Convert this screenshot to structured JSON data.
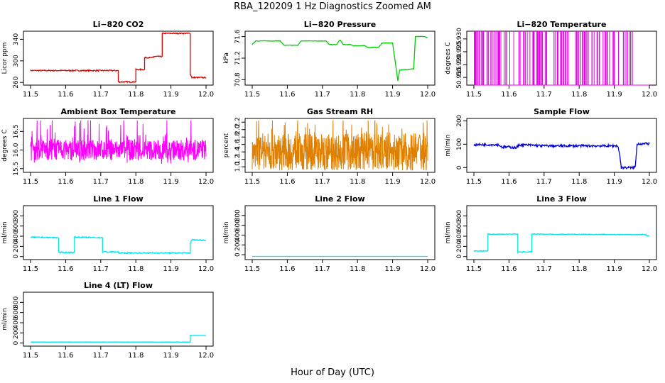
{
  "figure": {
    "title": "RBA_120209  1 Hz Diagnostics Zoomed AM",
    "xlabel": "Hour of Day (UTC)"
  },
  "chart_data": [
    {
      "id": "co2",
      "type": "line",
      "title": "Li−820 CO2",
      "ylabel": "Licor ppm",
      "color": "#e00000",
      "xlim": [
        11.5,
        12.0
      ],
      "ylim": [
        255,
        355
      ],
      "x_ticks": [
        11.5,
        11.6,
        11.7,
        11.8,
        11.9,
        12.0
      ],
      "x_tick_labels": [
        "11.5",
        "11.6",
        "11.7",
        "11.8",
        "11.9",
        "12.0"
      ],
      "y_ticks": [
        260,
        300,
        340
      ],
      "y_tick_labels": [
        "260",
        "300",
        "340"
      ],
      "noise": 1,
      "x": [
        11.5,
        11.75,
        11.75,
        11.8,
        11.8,
        11.825,
        11.825,
        11.85,
        11.85,
        11.875,
        11.875,
        11.955,
        11.955,
        11.96,
        11.96,
        12.0
      ],
      "y": [
        282,
        282,
        261,
        261,
        284,
        284,
        306,
        306,
        308,
        308,
        351,
        351,
        275,
        269,
        269,
        269
      ]
    },
    {
      "id": "pressure",
      "type": "line",
      "title": "Li−820 Pressure",
      "ylabel": "kPa",
      "color": "#00cc00",
      "xlim": [
        11.5,
        12.0
      ],
      "ylim": [
        70.7,
        71.7
      ],
      "x_ticks": [
        11.5,
        11.6,
        11.7,
        11.8,
        11.9,
        12.0
      ],
      "x_tick_labels": [
        "11.5",
        "11.6",
        "11.7",
        "11.8",
        "11.9",
        "12.0"
      ],
      "y_ticks": [
        70.8,
        71.2,
        71.6
      ],
      "y_tick_labels": [
        "70.8",
        "71.2",
        "71.6"
      ],
      "noise": 0.005,
      "x": [
        11.5,
        11.51,
        11.58,
        11.59,
        11.63,
        11.64,
        11.71,
        11.72,
        11.74,
        11.75,
        11.76,
        11.78,
        11.79,
        11.82,
        11.83,
        11.86,
        11.87,
        11.9,
        11.915,
        11.915,
        11.92,
        11.955,
        11.96,
        11.965,
        11.99,
        12.0
      ],
      "y": [
        71.45,
        71.52,
        71.52,
        71.44,
        71.44,
        71.52,
        71.52,
        71.45,
        71.45,
        71.54,
        71.45,
        71.45,
        71.43,
        71.43,
        71.4,
        71.4,
        71.48,
        71.48,
        70.78,
        70.78,
        70.98,
        71.0,
        71.0,
        71.6,
        71.6,
        71.58
      ]
    },
    {
      "id": "licor_temp",
      "type": "spikes",
      "title": "Li−820 Temperature",
      "ylabel": "degrees C",
      "color": "#ee00ee",
      "xlim": [
        11.5,
        12.0
      ],
      "ylim": [
        50.912,
        50.933
      ],
      "x_ticks": [
        11.5,
        11.6,
        11.7,
        11.8,
        11.9,
        12.0
      ],
      "x_tick_labels": [
        "11.5",
        "11.6",
        "11.7",
        "11.8",
        "11.9",
        "12.0"
      ],
      "y_ticks": [
        50.915,
        50.92,
        50.925,
        50.93
      ],
      "y_tick_labels": [
        "50.915",
        "50.920",
        "50.925",
        "50.930"
      ],
      "base": 50.912,
      "top": 50.933,
      "count": 120
    },
    {
      "id": "box_temp",
      "type": "noise",
      "title": "Ambient Box Temperature",
      "ylabel": "degrees C",
      "color": "#ff00ff",
      "xlim": [
        11.5,
        12.0
      ],
      "ylim": [
        15.4,
        16.85
      ],
      "x_ticks": [
        11.5,
        11.6,
        11.7,
        11.8,
        11.9,
        12.0
      ],
      "x_tick_labels": [
        "11.5",
        "11.6",
        "11.7",
        "11.8",
        "11.9",
        "12.0"
      ],
      "y_ticks": [
        15.5,
        16.0,
        16.5
      ],
      "y_tick_labels": [
        "15.5",
        "16.0",
        "16.5"
      ],
      "center": 16.0,
      "spread": 0.28,
      "min": 15.5,
      "max": 16.8,
      "count": 700
    },
    {
      "id": "rh",
      "type": "noise",
      "title": "Gas Stream RH",
      "ylabel": "percent",
      "color": "#e08000",
      "xlim": [
        11.5,
        12.0
      ],
      "ylim": [
        0.85,
        2.3
      ],
      "x_ticks": [
        11.5,
        11.6,
        11.7,
        11.8,
        11.9,
        12.0
      ],
      "x_tick_labels": [
        "11.5",
        "11.6",
        "11.7",
        "11.8",
        "11.9",
        "12.0"
      ],
      "y_ticks": [
        1.0,
        1.2,
        1.4,
        1.6,
        1.8,
        2.0,
        2.2
      ],
      "y_tick_labels": [
        "1.0",
        "1.2",
        "1.4",
        "1.6",
        "1.8",
        "2.0",
        "2.2"
      ],
      "center": 1.4,
      "spread": 0.5,
      "min": 0.9,
      "max": 2.25,
      "count": 800
    },
    {
      "id": "sample_flow",
      "type": "line",
      "title": "Sample Flow",
      "ylabel": "ml/min",
      "color": "#0000dd",
      "xlim": [
        11.5,
        12.0
      ],
      "ylim": [
        -20,
        210
      ],
      "x_ticks": [
        11.5,
        11.6,
        11.7,
        11.8,
        11.9,
        12.0
      ],
      "x_tick_labels": [
        "11.5",
        "11.6",
        "11.7",
        "11.8",
        "11.9",
        "12.0"
      ],
      "y_ticks": [
        0,
        100,
        200
      ],
      "y_tick_labels": [
        "0",
        "100",
        "200"
      ],
      "noise": 5,
      "x": [
        11.5,
        11.57,
        11.58,
        11.6,
        11.62,
        11.63,
        11.65,
        11.7,
        11.91,
        11.915,
        11.92,
        11.955,
        11.96,
        11.965,
        12.0
      ],
      "y": [
        98,
        98,
        88,
        88,
        85,
        97,
        97,
        93,
        93,
        60,
        0,
        0,
        5,
        102,
        102
      ]
    },
    {
      "id": "line1",
      "type": "line",
      "title": "Line 1 Flow",
      "ylabel": "ml/min",
      "color": "#00e5ee",
      "xlim": [
        11.5,
        12.0
      ],
      "ylim": [
        -60,
        1000
      ],
      "x_ticks": [
        11.5,
        11.6,
        11.7,
        11.8,
        11.9,
        12.0
      ],
      "x_tick_labels": [
        "11.5",
        "11.6",
        "11.7",
        "11.8",
        "11.9",
        "12.0"
      ],
      "y_ticks": [
        0,
        200,
        400,
        600,
        800
      ],
      "y_tick_labels": [
        "0",
        "200",
        "400",
        "600",
        "800"
      ],
      "noise": 12,
      "x": [
        11.5,
        11.58,
        11.58,
        11.625,
        11.625,
        11.705,
        11.705,
        11.75,
        11.75,
        11.955,
        11.955,
        11.96,
        12.0
      ],
      "y": [
        380,
        370,
        80,
        80,
        380,
        370,
        90,
        90,
        70,
        70,
        260,
        330,
        320
      ]
    },
    {
      "id": "line2",
      "type": "line",
      "title": "Line 2 Flow",
      "ylabel": "ml/min",
      "color": "#00e5ee",
      "xlim": [
        11.5,
        12.0
      ],
      "ylim": [
        -100,
        1000
      ],
      "x_ticks": [
        11.5,
        11.6,
        11.7,
        11.8,
        11.9,
        12.0
      ],
      "x_tick_labels": [
        "11.5",
        "11.6",
        "11.7",
        "11.8",
        "11.9",
        "12.0"
      ],
      "y_ticks": [
        0,
        200,
        400,
        600,
        800
      ],
      "y_tick_labels": [
        "0",
        "200",
        "400",
        "600",
        "800"
      ],
      "noise": 0,
      "x": [
        11.5,
        12.0
      ],
      "y": [
        -35,
        -35
      ]
    },
    {
      "id": "line3",
      "type": "line",
      "title": "Line 3 Flow",
      "ylabel": "ml/min",
      "color": "#00e5ee",
      "xlim": [
        11.5,
        12.0
      ],
      "ylim": [
        -60,
        1000
      ],
      "x_ticks": [
        11.5,
        11.6,
        11.7,
        11.8,
        11.9,
        12.0
      ],
      "x_tick_labels": [
        "11.5",
        "11.6",
        "11.7",
        "11.8",
        "11.9",
        "12.0"
      ],
      "y_ticks": [
        0,
        200,
        400,
        600,
        800
      ],
      "y_tick_labels": [
        "0",
        "200",
        "400",
        "600",
        "800"
      ],
      "noise": 8,
      "x": [
        11.5,
        11.54,
        11.54,
        11.625,
        11.625,
        11.665,
        11.665,
        11.99,
        11.99,
        12.0
      ],
      "y": [
        110,
        110,
        440,
        440,
        90,
        90,
        440,
        430,
        410,
        410
      ]
    },
    {
      "id": "line4",
      "type": "line",
      "title": "Line 4 (LT) Flow",
      "ylabel": "ml/min",
      "color": "#00e5ee",
      "xlim": [
        11.5,
        12.0
      ],
      "ylim": [
        -60,
        1000
      ],
      "x_ticks": [
        11.5,
        11.6,
        11.7,
        11.8,
        11.9,
        12.0
      ],
      "x_tick_labels": [
        "11.5",
        "11.6",
        "11.7",
        "11.8",
        "11.9",
        "12.0"
      ],
      "y_ticks": [
        0,
        200,
        400,
        600,
        800
      ],
      "y_tick_labels": [
        "0",
        "200",
        "400",
        "600",
        "800"
      ],
      "noise": 3,
      "x": [
        11.5,
        11.955,
        11.955,
        12.0
      ],
      "y": [
        20,
        20,
        150,
        150
      ]
    }
  ]
}
